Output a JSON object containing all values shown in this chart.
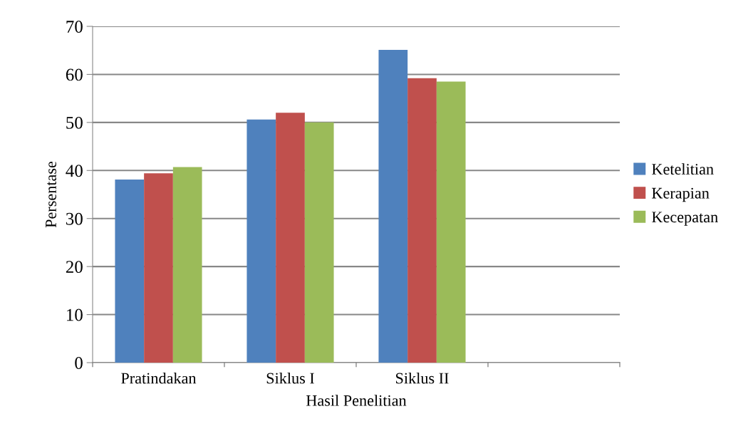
{
  "chart_data": {
    "type": "bar",
    "xlabel": "Hasil Penelitian",
    "ylabel": "Persentase",
    "categories": [
      "Pratindakan",
      "Siklus I",
      "Siklus II",
      null
    ],
    "series": [
      {
        "name": "Ketelitian",
        "color": "#4f81bd",
        "values": [
          38.1,
          50.6,
          65.1,
          null
        ]
      },
      {
        "name": "Kerapian",
        "color": "#c0504d",
        "values": [
          39.4,
          52.0,
          59.2,
          null
        ]
      },
      {
        "name": "Kecepatan",
        "color": "#9bbb59",
        "values": [
          40.7,
          50.0,
          58.5,
          null
        ]
      }
    ],
    "ylim": [
      0,
      70
    ],
    "yticks": [
      0,
      10,
      20,
      30,
      40,
      50,
      60,
      70
    ],
    "grid": "y",
    "legend": "right"
  }
}
